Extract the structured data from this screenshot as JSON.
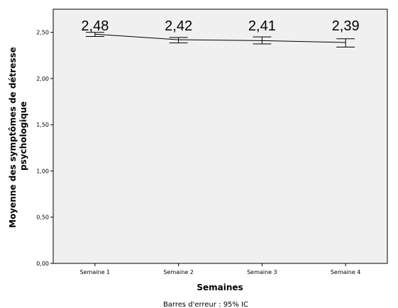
{
  "chart_data": {
    "type": "line",
    "categories": [
      "Semaine 1",
      "Semaine 2",
      "Semaine 3",
      "Semaine 4"
    ],
    "values": [
      2.48,
      2.42,
      2.41,
      2.39
    ],
    "data_labels": [
      "2,48",
      "2,42",
      "2,41",
      "2,39"
    ],
    "error_bars": {
      "lower": [
        2.455,
        2.385,
        2.375,
        2.34
      ],
      "upper": [
        2.5,
        2.445,
        2.45,
        2.43
      ]
    },
    "xlabel": "Semaines",
    "ylabel_lines": [
      "Moyenne des symptômes de détresse",
      "psychologique"
    ],
    "yticks": [
      {
        "value": 0,
        "label": "0,00"
      },
      {
        "value": 0.5,
        "label": "0,50"
      },
      {
        "value": 1.0,
        "label": "1,00"
      },
      {
        "value": 1.5,
        "label": "1,50"
      },
      {
        "value": 2.0,
        "label": "2,00"
      },
      {
        "value": 2.5,
        "label": "2,50"
      }
    ],
    "ylim": [
      0,
      2.75
    ],
    "grid": false,
    "footnote": "Barres d'erreur : 95% IC",
    "colors": {
      "plot_background": "#f0f0f0",
      "line": "#000000"
    }
  }
}
